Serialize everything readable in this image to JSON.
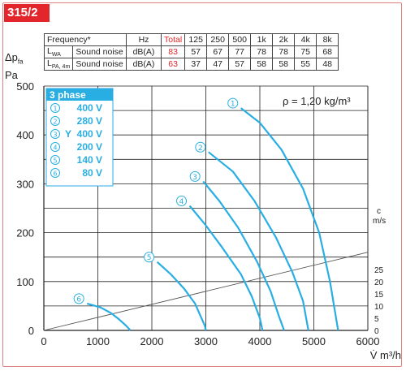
{
  "model": "315/2",
  "noise_table": {
    "header": [
      "Frequency*",
      "Hz",
      "Total",
      "125",
      "250",
      "500",
      "1k",
      "2k",
      "4k",
      "8k"
    ],
    "rows": [
      {
        "symbol": "L",
        "sub": "WA",
        "name": "Sound noise",
        "unit": "dB(A)",
        "total": "83",
        "values": [
          "57",
          "67",
          "77",
          "78",
          "78",
          "75",
          "68"
        ]
      },
      {
        "symbol": "L",
        "sub": "PA, 4m",
        "name": "Sound noise",
        "unit": "dB(A)",
        "total": "63",
        "values": [
          "37",
          "47",
          "57",
          "58",
          "58",
          "55",
          "48"
        ]
      }
    ]
  },
  "y_axis_label": {
    "line1": "Δp",
    "sub": "fa",
    "line2": "Pa"
  },
  "colors": {
    "curve": "#29aee3",
    "accent": "#e3262b",
    "phase_box": "#29aee3",
    "grid": "#222222"
  },
  "chart_data": {
    "type": "line",
    "xlabel": "V̇ m³/h",
    "ylabel": "Δpfa Pa",
    "xlim": [
      0,
      6000
    ],
    "ylim": [
      0,
      500
    ],
    "x_ticks": [
      "0",
      "1000",
      "2000",
      "3000",
      "4000",
      "5000",
      "6000"
    ],
    "y_ticks": [
      "0",
      "100",
      "200",
      "300",
      "400",
      "500"
    ],
    "grid": true,
    "annotation": "ρ = 1,20 kg/m³",
    "legend": {
      "title": "3 phase",
      "placement": "top-left",
      "entries": [
        {
          "marker": "①",
          "label": "400 V"
        },
        {
          "marker": "②",
          "label": "280 V"
        },
        {
          "marker": "③",
          "label": "400 V",
          "extra": "Y"
        },
        {
          "marker": "④",
          "label": "200 V"
        },
        {
          "marker": "⑤",
          "label": "140 V"
        },
        {
          "marker": "⑥",
          "label": "80 V"
        }
      ]
    },
    "series": [
      {
        "marker": "①",
        "x": [
          3650,
          4000,
          4400,
          4800,
          5100,
          5300,
          5450
        ],
        "y": [
          455,
          425,
          370,
          290,
          200,
          100,
          0
        ]
      },
      {
        "marker": "②",
        "x": [
          3050,
          3500,
          3900,
          4300,
          4600,
          4800,
          4900
        ],
        "y": [
          365,
          325,
          265,
          190,
          120,
          60,
          0
        ]
      },
      {
        "marker": "③",
        "x": [
          2950,
          3250,
          3600,
          3950,
          4200,
          4350,
          4450
        ],
        "y": [
          305,
          265,
          210,
          140,
          80,
          30,
          0
        ]
      },
      {
        "marker": "④",
        "x": [
          2700,
          3000,
          3300,
          3650,
          3850,
          4000,
          4050
        ],
        "y": [
          255,
          215,
          170,
          115,
          70,
          25,
          0
        ]
      },
      {
        "marker": "⑤",
        "x": [
          2100,
          2350,
          2600,
          2800,
          2900,
          2980,
          3000
        ],
        "y": [
          140,
          115,
          85,
          55,
          30,
          10,
          0
        ]
      },
      {
        "marker": "⑥",
        "x": [
          800,
          1050,
          1250,
          1400,
          1520,
          1580,
          1600
        ],
        "y": [
          55,
          47,
          35,
          22,
          10,
          3,
          0
        ]
      }
    ],
    "velocity_axis": {
      "label": "c",
      "unit": "m/s",
      "ticks": [
        "0",
        "5",
        "10",
        "15",
        "20",
        "25"
      ],
      "line": {
        "x": [
          0,
          6000
        ],
        "y": [
          0,
          160
        ]
      }
    }
  }
}
